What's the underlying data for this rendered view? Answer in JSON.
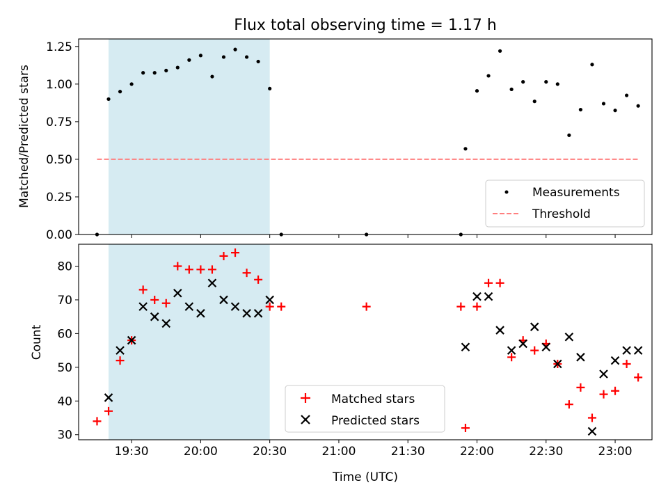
{
  "title": "Flux total observing time = 1.17 h",
  "colors": {
    "highlight": "#add8e6",
    "measurement": "#000000",
    "threshold": "#ff7f7f",
    "matched": "#ff0000",
    "predicted": "#000000"
  },
  "chart_data": [
    {
      "type": "scatter",
      "title": "Flux total observing time = 1.17 h",
      "xlabel": "",
      "ylabel": "Matched/Predicted stars",
      "xlim": [
        "19:07",
        "23:16"
      ],
      "ylim": [
        0,
        1.3
      ],
      "xticks": [
        "19:30",
        "20:00",
        "20:30",
        "21:00",
        "21:30",
        "22:00",
        "22:30",
        "23:00"
      ],
      "yticks": [
        "0.00",
        "0.25",
        "0.50",
        "0.75",
        "1.00",
        "1.25"
      ],
      "highlight_span": [
        "19:20",
        "20:30"
      ],
      "threshold": {
        "value": 0.5,
        "x_range": [
          "19:15",
          "23:10"
        ]
      },
      "legend": {
        "placement": "bottom-right",
        "entries": [
          "Measurements",
          "Threshold"
        ]
      },
      "series": [
        {
          "name": "Measurements",
          "marker": "dot",
          "x": [
            "19:15",
            "19:20",
            "19:25",
            "19:30",
            "19:35",
            "19:40",
            "19:45",
            "19:50",
            "19:55",
            "20:00",
            "20:05",
            "20:10",
            "20:15",
            "20:20",
            "20:25",
            "20:30",
            "20:35",
            "21:12",
            "21:53",
            "21:55",
            "22:00",
            "22:05",
            "22:10",
            "22:15",
            "22:20",
            "22:25",
            "22:30",
            "22:35",
            "22:40",
            "22:45",
            "22:50",
            "22:55",
            "23:00",
            "23:05",
            "23:10"
          ],
          "y": [
            0.0,
            0.9,
            0.95,
            1.0,
            1.075,
            1.075,
            1.09,
            1.11,
            1.16,
            1.19,
            1.05,
            1.18,
            1.23,
            1.18,
            1.15,
            0.97,
            0.0,
            0.0,
            0.0,
            0.57,
            0.955,
            1.055,
            1.22,
            0.965,
            1.015,
            0.885,
            1.015,
            1.0,
            0.66,
            0.83,
            1.13,
            0.87,
            0.825,
            0.925,
            0.855
          ]
        }
      ]
    },
    {
      "type": "scatter",
      "xlabel": "Time (UTC)",
      "ylabel": "Count",
      "xlim": [
        "19:07",
        "23:16"
      ],
      "ylim": [
        28.5,
        86.5
      ],
      "xticks": [
        "19:30",
        "20:00",
        "20:30",
        "21:00",
        "21:30",
        "22:00",
        "22:30",
        "23:00"
      ],
      "yticks": [
        "30",
        "40",
        "50",
        "60",
        "70",
        "80"
      ],
      "highlight_span": [
        "19:20",
        "20:30"
      ],
      "legend": {
        "placement": "bottom-center",
        "entries": [
          "Matched stars",
          "Predicted stars"
        ]
      },
      "series": [
        {
          "name": "Matched stars",
          "marker": "plus",
          "x": [
            "19:15",
            "19:20",
            "19:25",
            "19:30",
            "19:35",
            "19:40",
            "19:45",
            "19:50",
            "19:55",
            "20:00",
            "20:05",
            "20:10",
            "20:15",
            "20:20",
            "20:25",
            "20:30",
            "20:35",
            "21:12",
            "21:53",
            "21:55",
            "22:00",
            "22:05",
            "22:10",
            "22:15",
            "22:20",
            "22:25",
            "22:30",
            "22:35",
            "22:40",
            "22:45",
            "22:50",
            "22:55",
            "23:00",
            "23:05",
            "23:10"
          ],
          "y": [
            34,
            37,
            52,
            58,
            73,
            70,
            69,
            80,
            79,
            79,
            79,
            83,
            84,
            78,
            76,
            68,
            68,
            68,
            68,
            32,
            68,
            75,
            75,
            53,
            58,
            55,
            57,
            51,
            39,
            44,
            35,
            42,
            43,
            51,
            47
          ]
        },
        {
          "name": "Predicted stars",
          "marker": "x",
          "x": [
            "19:20",
            "19:25",
            "19:30",
            "19:35",
            "19:40",
            "19:45",
            "19:50",
            "19:55",
            "20:00",
            "20:05",
            "20:10",
            "20:15",
            "20:20",
            "20:25",
            "20:30",
            "21:55",
            "22:00",
            "22:05",
            "22:10",
            "22:15",
            "22:20",
            "22:25",
            "22:30",
            "22:35",
            "22:40",
            "22:45",
            "22:50",
            "22:55",
            "23:00",
            "23:05",
            "23:10"
          ],
          "y": [
            41,
            55,
            58,
            68,
            65,
            63,
            72,
            68,
            66,
            75,
            70,
            68,
            66,
            66,
            70,
            56,
            71,
            71,
            61,
            55,
            57,
            62,
            56,
            51,
            59,
            53,
            31,
            48,
            52,
            55,
            55
          ]
        }
      ]
    }
  ]
}
